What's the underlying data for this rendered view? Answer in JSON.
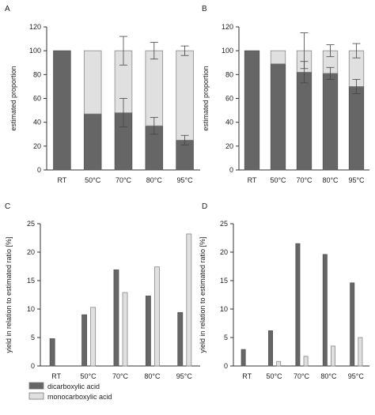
{
  "colors": {
    "dark": "#666666",
    "light": "#e0e0e0",
    "edge": "#555555",
    "axis": "#333333"
  },
  "legend": {
    "items": [
      {
        "label": "dicarboxylic acid",
        "color": "#666666"
      },
      {
        "label": "monocarboxylic acid",
        "color": "#e0e0e0"
      }
    ],
    "placement": "bottom-left"
  },
  "chart_data": [
    {
      "panel": "A",
      "type": "bar",
      "stacked": true,
      "categories": [
        "RT",
        "50°C",
        "70°C",
        "80°C",
        "95°C"
      ],
      "series": [
        {
          "values": [
            100,
            47,
            48,
            37,
            25
          ],
          "errors": [
            0,
            0,
            12,
            7,
            4
          ]
        },
        {
          "values": [
            0,
            53,
            52,
            63,
            75
          ],
          "errors": [
            0,
            0,
            12,
            7,
            4
          ]
        }
      ],
      "ylabel": "estimated proportion",
      "ylim": [
        0,
        120
      ],
      "yticks": [
        0,
        20,
        40,
        60,
        80,
        100,
        120
      ]
    },
    {
      "panel": "B",
      "type": "bar",
      "stacked": true,
      "categories": [
        "RT",
        "50°C",
        "70°C",
        "80°C",
        "95°C"
      ],
      "series": [
        {
          "values": [
            100,
            89,
            82,
            81,
            70
          ],
          "errors": [
            0,
            0,
            9,
            5,
            6
          ]
        },
        {
          "values": [
            0,
            11,
            18,
            19,
            30
          ],
          "errors": [
            0,
            0,
            15,
            5,
            6
          ]
        }
      ],
      "ylabel": "estimated proportion",
      "ylim": [
        0,
        120
      ],
      "yticks": [
        0,
        20,
        40,
        60,
        80,
        100,
        120
      ]
    },
    {
      "panel": "C",
      "type": "bar",
      "stacked": false,
      "categories": [
        "RT",
        "50°C",
        "70°C",
        "80°C",
        "95°C"
      ],
      "series": [
        {
          "values": [
            4.8,
            9.0,
            16.9,
            12.3,
            9.4
          ]
        },
        {
          "values": [
            0,
            10.3,
            12.9,
            17.4,
            23.2
          ]
        }
      ],
      "ylabel": "yield in relation to estimated ratio [%]",
      "ylim": [
        0,
        25
      ],
      "yticks": [
        0,
        5,
        10,
        15,
        20,
        25
      ]
    },
    {
      "panel": "D",
      "type": "bar",
      "stacked": false,
      "categories": [
        "RT",
        "50°C",
        "70°C",
        "80°C",
        "95°C"
      ],
      "series": [
        {
          "values": [
            2.9,
            6.2,
            21.5,
            19.6,
            14.6
          ]
        },
        {
          "values": [
            0,
            0.8,
            1.7,
            3.5,
            5.0
          ]
        }
      ],
      "ylabel": "yield in relation to estimated ratio [%]",
      "ylim": [
        0,
        25
      ],
      "yticks": [
        0,
        5,
        10,
        15,
        20,
        25
      ]
    }
  ]
}
